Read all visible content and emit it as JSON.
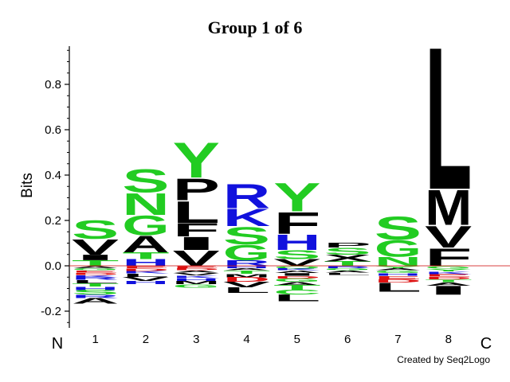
{
  "chart_data": {
    "type": "sequence-logo",
    "title": "Group 1 of 6",
    "ylabel": "Bits",
    "ylim": [
      -0.27,
      1.0
    ],
    "y_ticks": [
      -0.2,
      0.0,
      0.2,
      0.4,
      0.6,
      0.8
    ],
    "y_tick_labels": [
      "-0.2",
      "0.0",
      "0.2",
      "0.4",
      "0.6",
      "0.8"
    ],
    "positions": [
      "1",
      "2",
      "3",
      "4",
      "5",
      "6",
      "7",
      "8"
    ],
    "n_label": "N",
    "c_label": "C",
    "credit": "Created by Seq2Logo",
    "colors": {
      "S": "#22cc22",
      "N": "#22cc22",
      "G": "#22cc22",
      "Y": "#22cc22",
      "T": "#22cc22",
      "Q": "#22cc22",
      "C": "#22cc22",
      "R": "#1111dd",
      "K": "#1111dd",
      "H": "#1111dd",
      "D": "#dd1111",
      "E": "#dd1111",
      "A": "#000000",
      "V": "#000000",
      "L": "#000000",
      "I": "#000000",
      "P": "#000000",
      "F": "#000000",
      "M": "#000000",
      "W": "#000000",
      "X": "#000000"
    },
    "columns": [
      {
        "position": "1",
        "positive": [
          {
            "letter": "T",
            "h": 0.025
          },
          {
            "letter": "I",
            "h": 0.025
          },
          {
            "letter": "V",
            "h": 0.07
          },
          {
            "letter": "S",
            "h": 0.085
          }
        ],
        "negative": [
          {
            "letter": "A",
            "h": 0.01
          },
          {
            "letter": "G",
            "h": 0.01
          },
          {
            "letter": "E",
            "h": 0.01
          },
          {
            "letter": "D",
            "h": 0.01
          },
          {
            "letter": "K",
            "h": 0.01
          },
          {
            "letter": "R",
            "h": 0.012
          },
          {
            "letter": "L",
            "h": 0.015
          },
          {
            "letter": "T",
            "h": 0.015
          },
          {
            "letter": "H",
            "h": 0.015
          },
          {
            "letter": "S",
            "h": 0.02
          },
          {
            "letter": "R",
            "h": 0.015
          },
          {
            "letter": "A",
            "h": 0.025
          }
        ]
      },
      {
        "position": "2",
        "positive": [
          {
            "letter": "H",
            "h": 0.03
          },
          {
            "letter": "T",
            "h": 0.03
          },
          {
            "letter": "A",
            "h": 0.075
          },
          {
            "letter": "G",
            "h": 0.09
          },
          {
            "letter": "N",
            "h": 0.1
          },
          {
            "letter": "S",
            "h": 0.105
          }
        ],
        "negative": [
          {
            "letter": "E",
            "h": 0.01
          },
          {
            "letter": "D",
            "h": 0.012
          },
          {
            "letter": "K",
            "h": 0.012
          },
          {
            "letter": "L",
            "h": 0.015
          },
          {
            "letter": "V",
            "h": 0.018
          },
          {
            "letter": "H",
            "h": 0.013
          }
        ]
      },
      {
        "position": "3",
        "positive": [
          {
            "letter": "V",
            "h": 0.07
          },
          {
            "letter": "I",
            "h": 0.06
          },
          {
            "letter": "F",
            "h": 0.06
          },
          {
            "letter": "L",
            "h": 0.1
          },
          {
            "letter": "P",
            "h": 0.1
          },
          {
            "letter": "Y",
            "h": 0.16
          }
        ],
        "negative": [
          {
            "letter": "E",
            "h": 0.01
          },
          {
            "letter": "D",
            "h": 0.01
          },
          {
            "letter": "A",
            "h": 0.01
          },
          {
            "letter": "V",
            "h": 0.012
          },
          {
            "letter": "K",
            "h": 0.012
          },
          {
            "letter": "H",
            "h": 0.012
          },
          {
            "letter": "M",
            "h": 0.015
          },
          {
            "letter": "G",
            "h": 0.015
          }
        ]
      },
      {
        "position": "4",
        "positive": [
          {
            "letter": "R",
            "h": 0.025
          },
          {
            "letter": "G",
            "h": 0.07
          },
          {
            "letter": "S",
            "h": 0.08
          },
          {
            "letter": "K",
            "h": 0.08
          },
          {
            "letter": "R",
            "h": 0.11
          }
        ],
        "negative": [
          {
            "letter": "H",
            "h": 0.01
          },
          {
            "letter": "A",
            "h": 0.01
          },
          {
            "letter": "T",
            "h": 0.015
          },
          {
            "letter": "M",
            "h": 0.015
          },
          {
            "letter": "D",
            "h": 0.02
          },
          {
            "letter": "V",
            "h": 0.025
          },
          {
            "letter": "L",
            "h": 0.025
          }
        ]
      },
      {
        "position": "5",
        "positive": [
          {
            "letter": "V",
            "h": 0.03
          },
          {
            "letter": "S",
            "h": 0.04
          },
          {
            "letter": "H",
            "h": 0.07
          },
          {
            "letter": "F",
            "h": 0.1
          },
          {
            "letter": "Y",
            "h": 0.13
          }
        ],
        "negative": [
          {
            "letter": "Q",
            "h": 0.01
          },
          {
            "letter": "K",
            "h": 0.01
          },
          {
            "letter": "A",
            "h": 0.012
          },
          {
            "letter": "I",
            "h": 0.012
          },
          {
            "letter": "D",
            "h": 0.012
          },
          {
            "letter": "G",
            "h": 0.015
          },
          {
            "letter": "A",
            "h": 0.015
          },
          {
            "letter": "T",
            "h": 0.02
          },
          {
            "letter": "C",
            "h": 0.02
          },
          {
            "letter": "L",
            "h": 0.03
          }
        ]
      },
      {
        "position": "6",
        "positive": [
          {
            "letter": "T",
            "h": 0.02
          },
          {
            "letter": "X",
            "h": 0.03
          },
          {
            "letter": "S",
            "h": 0.03
          },
          {
            "letter": "P",
            "h": 0.02
          }
        ],
        "negative": [
          {
            "letter": "R",
            "h": 0.01
          },
          {
            "letter": "G",
            "h": 0.01
          },
          {
            "letter": "A",
            "h": 0.01
          },
          {
            "letter": "L",
            "h": 0.01
          }
        ]
      },
      {
        "position": "7",
        "positive": [
          {
            "letter": "N",
            "h": 0.04
          },
          {
            "letter": "G",
            "h": 0.075
          },
          {
            "letter": "S",
            "h": 0.105
          }
        ],
        "negative": [
          {
            "letter": "Y",
            "h": 0.01
          },
          {
            "letter": "A",
            "h": 0.01
          },
          {
            "letter": "G",
            "h": 0.012
          },
          {
            "letter": "H",
            "h": 0.012
          },
          {
            "letter": "E",
            "h": 0.015
          },
          {
            "letter": "D",
            "h": 0.015
          },
          {
            "letter": "L",
            "h": 0.04
          }
        ]
      },
      {
        "position": "8",
        "positive": [
          {
            "letter": "F",
            "h": 0.08
          },
          {
            "letter": "V",
            "h": 0.1
          },
          {
            "letter": "M",
            "h": 0.16
          },
          {
            "letter": "L",
            "h": 0.65
          }
        ],
        "negative": [
          {
            "letter": "G",
            "h": 0.012
          },
          {
            "letter": "Y",
            "h": 0.012
          },
          {
            "letter": "K",
            "h": 0.012
          },
          {
            "letter": "E",
            "h": 0.012
          },
          {
            "letter": "D",
            "h": 0.012
          },
          {
            "letter": "T",
            "h": 0.012
          },
          {
            "letter": "A",
            "h": 0.015
          },
          {
            "letter": "I",
            "h": 0.04
          }
        ]
      }
    ]
  }
}
